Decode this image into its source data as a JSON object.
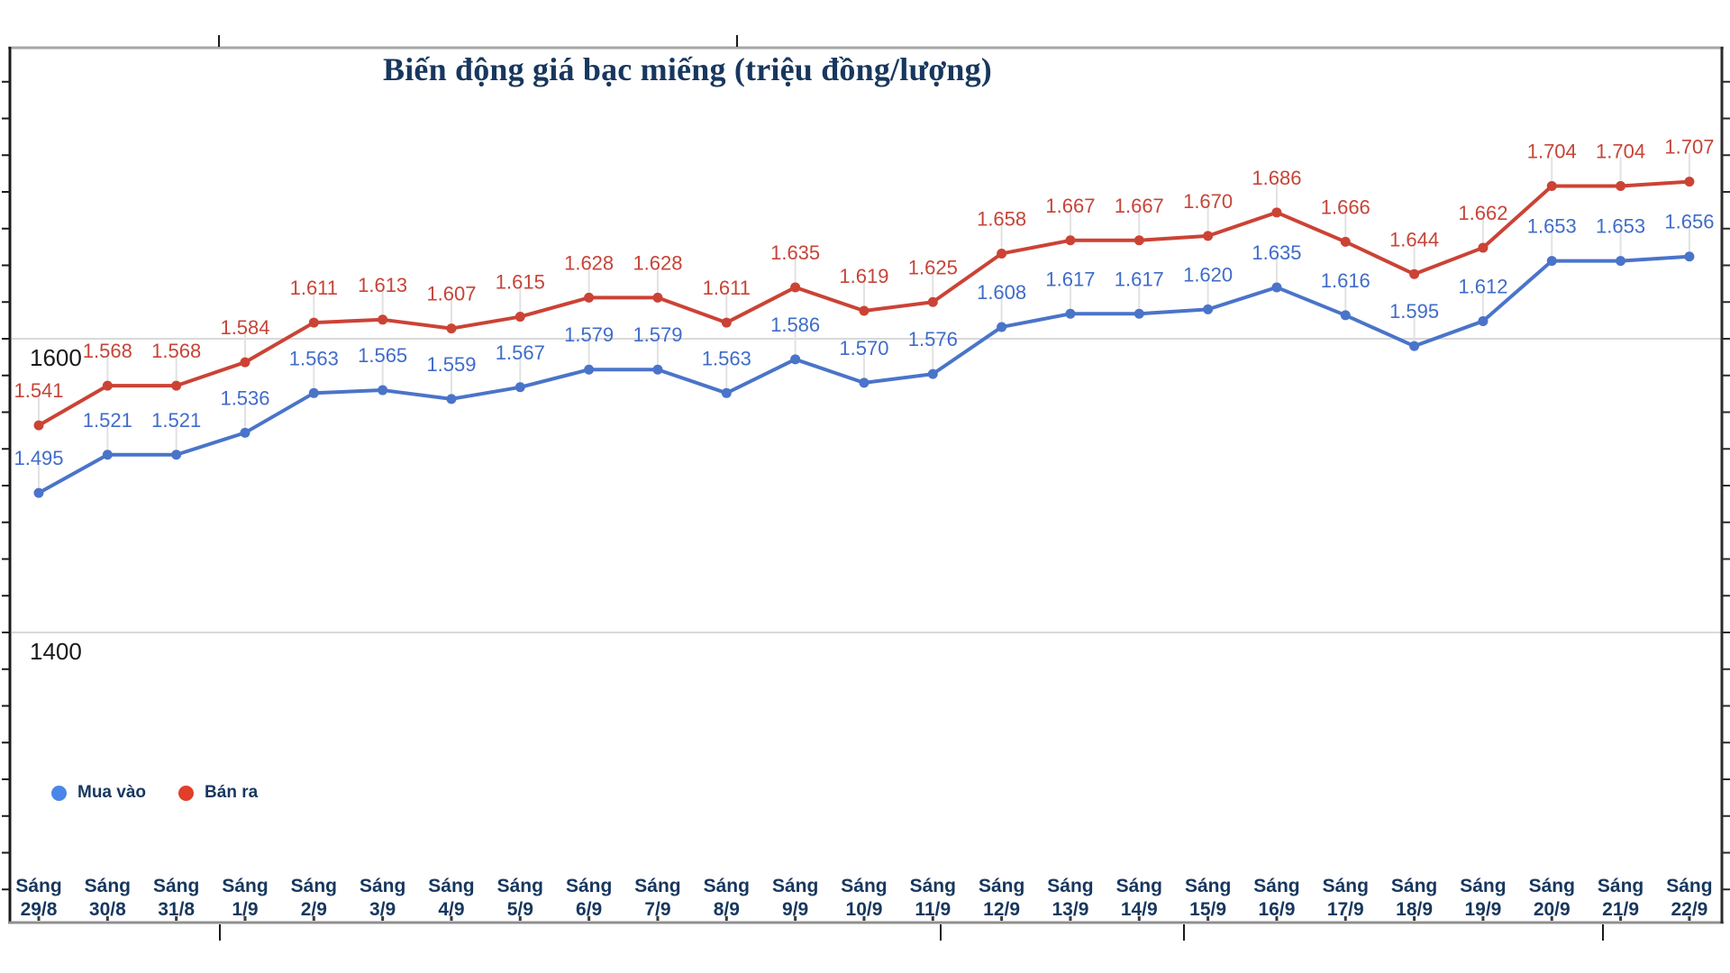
{
  "chart_data": {
    "type": "line",
    "title": "Biến động giá bạc miếng (triệu đồng/lượng)",
    "unit_note": "values shown with dot thousands separator, e.g. 1.495 = 1495",
    "categories": [
      "Sáng 29/8",
      "Sáng 30/8",
      "Sáng 31/8",
      "Sáng 1/9",
      "Sáng 2/9",
      "Sáng 3/9",
      "Sáng 4/9",
      "Sáng 5/9",
      "Sáng 6/9",
      "Sáng 7/9",
      "Sáng 8/9",
      "Sáng 9/9",
      "Sáng 10/9",
      "Sáng 11/9",
      "Sáng 12/9",
      "Sáng 13/9",
      "Sáng 14/9",
      "Sáng 15/9",
      "Sáng 16/9",
      "Sáng 17/9",
      "Sáng 18/9",
      "Sáng 19/9",
      "Sáng 20/9",
      "Sáng 21/9",
      "Sáng 22/9"
    ],
    "series": [
      {
        "name": "Mua vào",
        "line_color": "#4A74C9",
        "label_color": "#3F6CC8",
        "legend_dot_color": "#4A86E8",
        "values": [
          1495,
          1521,
          1521,
          1536,
          1563,
          1565,
          1559,
          1567,
          1579,
          1579,
          1563,
          1586,
          1570,
          1576,
          1608,
          1617,
          1617,
          1620,
          1635,
          1616,
          1595,
          1612,
          1653,
          1653,
          1656
        ],
        "labels": [
          "1.495",
          "1.521",
          "1.521",
          "1.536",
          "1.563",
          "1.565",
          "1.559",
          "1.567",
          "1.579",
          "1.579",
          "1.563",
          "1.586",
          "1.570",
          "1.576",
          "1.608",
          "1.617",
          "1.617",
          "1.620",
          "1.635",
          "1.616",
          "1.595",
          "1.612",
          "1.653",
          "1.653",
          "1.656"
        ]
      },
      {
        "name": "Bán ra",
        "line_color": "#CB4335",
        "label_color": "#C64438",
        "legend_dot_color": "#E23E2B",
        "values": [
          1541,
          1568,
          1568,
          1584,
          1611,
          1613,
          1607,
          1615,
          1628,
          1628,
          1611,
          1635,
          1619,
          1625,
          1658,
          1667,
          1667,
          1670,
          1686,
          1666,
          1644,
          1662,
          1704,
          1704,
          1707
        ],
        "labels": [
          "1.541",
          "1.568",
          "1.568",
          "1.584",
          "1.611",
          "1.613",
          "1.607",
          "1.615",
          "1.628",
          "1.628",
          "1.611",
          "1.635",
          "1.619",
          "1.625",
          "1.658",
          "1.667",
          "1.667",
          "1.670",
          "1.686",
          "1.666",
          "1.644",
          "1.662",
          "1.704",
          "1.704",
          "1.707"
        ]
      }
    ],
    "y_axis": {
      "gridlines": [
        {
          "value": 1600,
          "label": "1600"
        },
        {
          "value": 1400,
          "label": "1400"
        }
      ],
      "ylim": [
        1200,
        1800
      ],
      "minor_tick_step": 25
    },
    "grid": "horizontal",
    "legend_position": "bottom-left",
    "colors": {
      "title_text": "#17375E",
      "axis_label_text": "#17375E",
      "tick_label_text": "#1A1A1A",
      "gridline": "#D9D9D9",
      "leader_line": "#E2E2E2",
      "frame_dark": "#2B2B2B",
      "frame_light": "#A6A6A6"
    }
  }
}
